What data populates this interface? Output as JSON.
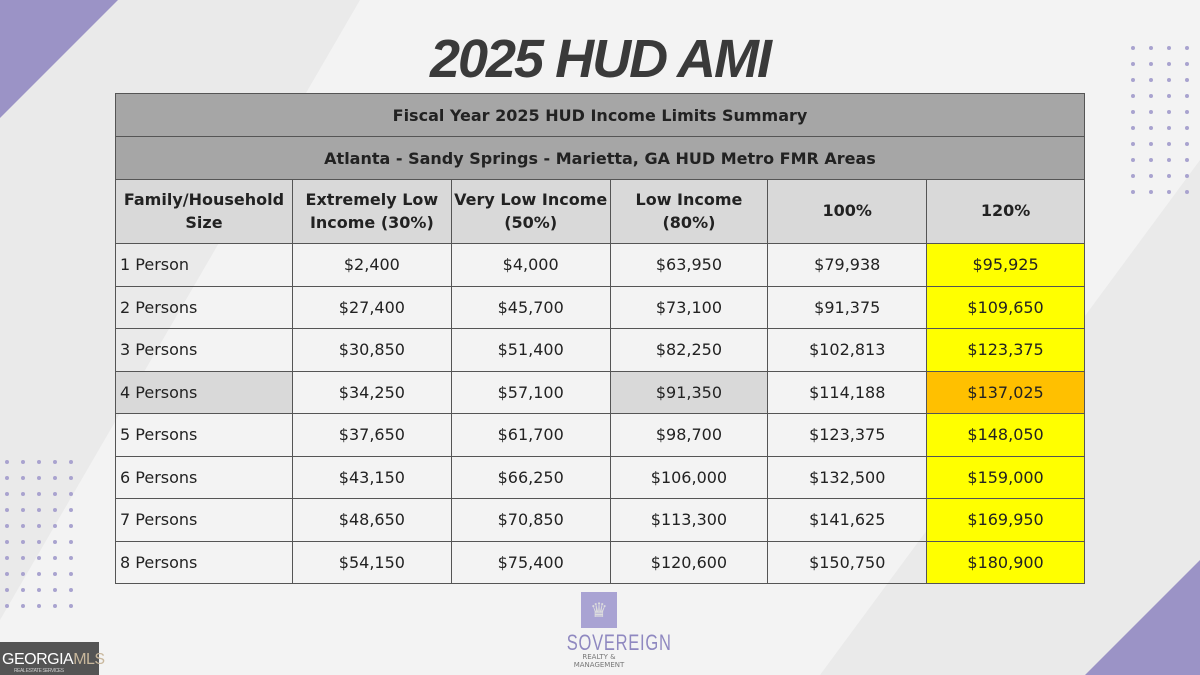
{
  "title": "2025 HUD AMI",
  "table": {
    "caption1": "Fiscal Year 2025 HUD Income Limits Summary",
    "caption2": "Atlanta - Sandy Springs - Marietta, GA HUD Metro FMR Areas",
    "headers": [
      [
        "Family/Household",
        "Size"
      ],
      [
        "Extremely Low",
        "Income (30%)"
      ],
      [
        "Very Low Income",
        "(50%)"
      ],
      [
        "Low Income",
        "(80%)"
      ],
      [
        "100%",
        ""
      ],
      [
        "120%",
        ""
      ]
    ],
    "rows": [
      [
        "1 Person",
        "$2,400",
        "$4,000",
        "$63,950",
        "$79,938",
        "$95,925"
      ],
      [
        "2 Persons",
        "$27,400",
        "$45,700",
        "$73,100",
        "$91,375",
        "$109,650"
      ],
      [
        "3 Persons",
        "$30,850",
        "$51,400",
        "$82,250",
        "$102,813",
        "$123,375"
      ],
      [
        "4 Persons",
        "$34,250",
        "$57,100",
        "$91,350",
        "$114,188",
        "$137,025"
      ],
      [
        "5 Persons",
        "$37,650",
        "$61,700",
        "$98,700",
        "$123,375",
        "$148,050"
      ],
      [
        "6 Persons",
        "$43,150",
        "$66,250",
        "$106,000",
        "$132,500",
        "$159,000"
      ],
      [
        "7 Persons",
        "$48,650",
        "$70,850",
        "$113,300",
        "$141,625",
        "$169,950"
      ],
      [
        "8 Persons",
        "$54,150",
        "$75,400",
        "$120,600",
        "$150,750",
        "$180,900"
      ]
    ]
  },
  "colors": {
    "highlight_yellow": "#ffff00",
    "highlight_orange": "#ffc000",
    "highlight_gray": "#d9d9d9",
    "accent_purple": "#9b93c6"
  },
  "logos": {
    "sovereign_name": "SOVEREIGN",
    "sovereign_sub": "REALTY & MANAGEMENT",
    "gmls_a": "GEORGIA",
    "gmls_b": "MLS",
    "gmls_sub": "REAL ESTATE SERVICES"
  }
}
